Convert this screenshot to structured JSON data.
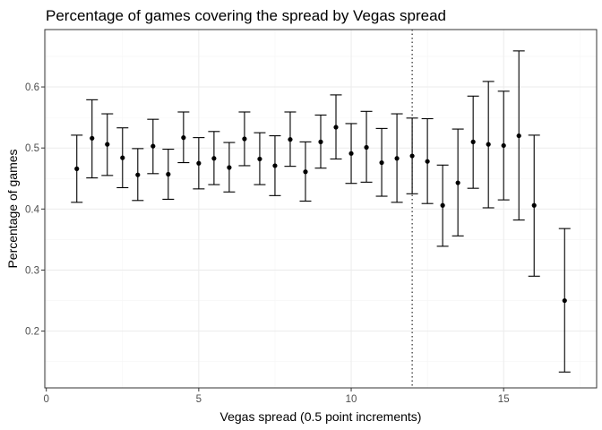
{
  "chart_data": {
    "type": "scatter",
    "title": "Percentage of games covering the spread by Vegas spread",
    "xlabel": "Vegas spread (0.5 point increments)",
    "ylabel": "Percentage of games",
    "xlim": [
      -0.05,
      18.05
    ],
    "ylim": [
      0.107,
      0.694
    ],
    "x_ticks": [
      0,
      5,
      10,
      15
    ],
    "y_ticks": [
      0.2,
      0.3,
      0.4,
      0.5,
      0.6
    ],
    "y_tick_labels": [
      "0.2",
      "0.3",
      "0.4",
      "0.5",
      "0.6"
    ],
    "grid": true,
    "reference_line": {
      "x": 12,
      "style": "dotted"
    },
    "points": [
      {
        "x": 1.0,
        "y": 0.466,
        "lo": 0.411,
        "hi": 0.521
      },
      {
        "x": 1.5,
        "y": 0.516,
        "lo": 0.451,
        "hi": 0.579
      },
      {
        "x": 2.0,
        "y": 0.506,
        "lo": 0.455,
        "hi": 0.556
      },
      {
        "x": 2.5,
        "y": 0.484,
        "lo": 0.435,
        "hi": 0.533
      },
      {
        "x": 3.0,
        "y": 0.456,
        "lo": 0.414,
        "hi": 0.499
      },
      {
        "x": 3.5,
        "y": 0.503,
        "lo": 0.458,
        "hi": 0.547
      },
      {
        "x": 4.0,
        "y": 0.457,
        "lo": 0.416,
        "hi": 0.498
      },
      {
        "x": 4.5,
        "y": 0.517,
        "lo": 0.476,
        "hi": 0.559
      },
      {
        "x": 5.0,
        "y": 0.475,
        "lo": 0.433,
        "hi": 0.517
      },
      {
        "x": 5.5,
        "y": 0.483,
        "lo": 0.44,
        "hi": 0.527
      },
      {
        "x": 6.0,
        "y": 0.468,
        "lo": 0.428,
        "hi": 0.509
      },
      {
        "x": 6.5,
        "y": 0.515,
        "lo": 0.471,
        "hi": 0.559
      },
      {
        "x": 7.0,
        "y": 0.482,
        "lo": 0.44,
        "hi": 0.525
      },
      {
        "x": 7.5,
        "y": 0.471,
        "lo": 0.422,
        "hi": 0.52
      },
      {
        "x": 8.0,
        "y": 0.514,
        "lo": 0.47,
        "hi": 0.559
      },
      {
        "x": 8.5,
        "y": 0.461,
        "lo": 0.413,
        "hi": 0.51
      },
      {
        "x": 9.0,
        "y": 0.51,
        "lo": 0.467,
        "hi": 0.554
      },
      {
        "x": 9.5,
        "y": 0.534,
        "lo": 0.482,
        "hi": 0.587
      },
      {
        "x": 10.0,
        "y": 0.491,
        "lo": 0.442,
        "hi": 0.54
      },
      {
        "x": 10.5,
        "y": 0.501,
        "lo": 0.444,
        "hi": 0.56
      },
      {
        "x": 11.0,
        "y": 0.476,
        "lo": 0.421,
        "hi": 0.532
      },
      {
        "x": 11.5,
        "y": 0.483,
        "lo": 0.411,
        "hi": 0.556
      },
      {
        "x": 12.0,
        "y": 0.487,
        "lo": 0.425,
        "hi": 0.549
      },
      {
        "x": 12.5,
        "y": 0.478,
        "lo": 0.409,
        "hi": 0.548
      },
      {
        "x": 13.0,
        "y": 0.406,
        "lo": 0.339,
        "hi": 0.472
      },
      {
        "x": 13.5,
        "y": 0.443,
        "lo": 0.356,
        "hi": 0.531
      },
      {
        "x": 14.0,
        "y": 0.51,
        "lo": 0.434,
        "hi": 0.585
      },
      {
        "x": 14.5,
        "y": 0.506,
        "lo": 0.402,
        "hi": 0.609
      },
      {
        "x": 15.0,
        "y": 0.504,
        "lo": 0.415,
        "hi": 0.593
      },
      {
        "x": 15.5,
        "y": 0.52,
        "lo": 0.382,
        "hi": 0.659
      },
      {
        "x": 16.0,
        "y": 0.406,
        "lo": 0.29,
        "hi": 0.521
      },
      {
        "x": 17.0,
        "y": 0.25,
        "lo": 0.133,
        "hi": 0.368
      }
    ]
  }
}
